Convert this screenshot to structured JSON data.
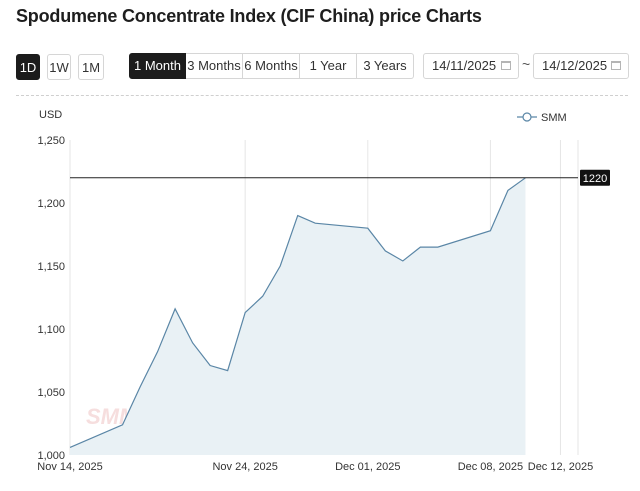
{
  "page": {
    "title": "Spodumene Concentrate Index (CIF China) price Charts"
  },
  "interval_buttons": [
    {
      "label": "1D",
      "active": true
    },
    {
      "label": "1W",
      "active": false
    },
    {
      "label": "1M",
      "active": false
    }
  ],
  "range_buttons": [
    {
      "label": "1 Month",
      "active": true
    },
    {
      "label": "3 Months",
      "active": false
    },
    {
      "label": "6 Months",
      "active": false
    },
    {
      "label": "1 Year",
      "active": false
    },
    {
      "label": "3 Years",
      "active": false
    }
  ],
  "date_range": {
    "start": "14/11/2025",
    "separator": "~",
    "end": "14/12/2025",
    "icon": "calendar-icon"
  },
  "chart_data": {
    "type": "area",
    "ylabel": "USD",
    "ylim": [
      1000,
      1250
    ],
    "yticks": [
      "1,000",
      "1,050",
      "1,100",
      "1,150",
      "1,200",
      "1,250"
    ],
    "xticks": [
      {
        "label": "Nov 14, 2025",
        "date": "2025-11-14"
      },
      {
        "label": "Nov 24, 2025",
        "date": "2025-11-24"
      },
      {
        "label": "Dec 01, 2025",
        "date": "2025-12-01"
      },
      {
        "label": "Dec 08, 2025",
        "date": "2025-12-08"
      },
      {
        "label": "Dec 12, 2025",
        "date": "2025-12-12"
      }
    ],
    "grid": "vertical",
    "legend_position": "top-right",
    "series": [
      {
        "name": "SMM",
        "color": "#5a86a6",
        "fill": "#e9f1f5",
        "points": [
          [
            "2025-11-14",
            1006
          ],
          [
            "2025-11-17",
            1024
          ],
          [
            "2025-11-18",
            1054
          ],
          [
            "2025-11-19",
            1082
          ],
          [
            "2025-11-20",
            1116
          ],
          [
            "2025-11-21",
            1089
          ],
          [
            "2025-11-22",
            1071
          ],
          [
            "2025-11-23",
            1067
          ],
          [
            "2025-11-24",
            1113
          ],
          [
            "2025-11-25",
            1126
          ],
          [
            "2025-11-26",
            1150
          ],
          [
            "2025-11-27",
            1190
          ],
          [
            "2025-11-28",
            1184
          ],
          [
            "2025-12-01",
            1180
          ],
          [
            "2025-12-02",
            1162
          ],
          [
            "2025-12-03",
            1154
          ],
          [
            "2025-12-04",
            1165
          ],
          [
            "2025-12-05",
            1165
          ],
          [
            "2025-12-08",
            1178
          ],
          [
            "2025-12-09",
            1210
          ],
          [
            "2025-12-10",
            1220
          ]
        ]
      }
    ],
    "reference_line": {
      "value": 1220,
      "label": "1220"
    },
    "watermark": "SMM"
  }
}
